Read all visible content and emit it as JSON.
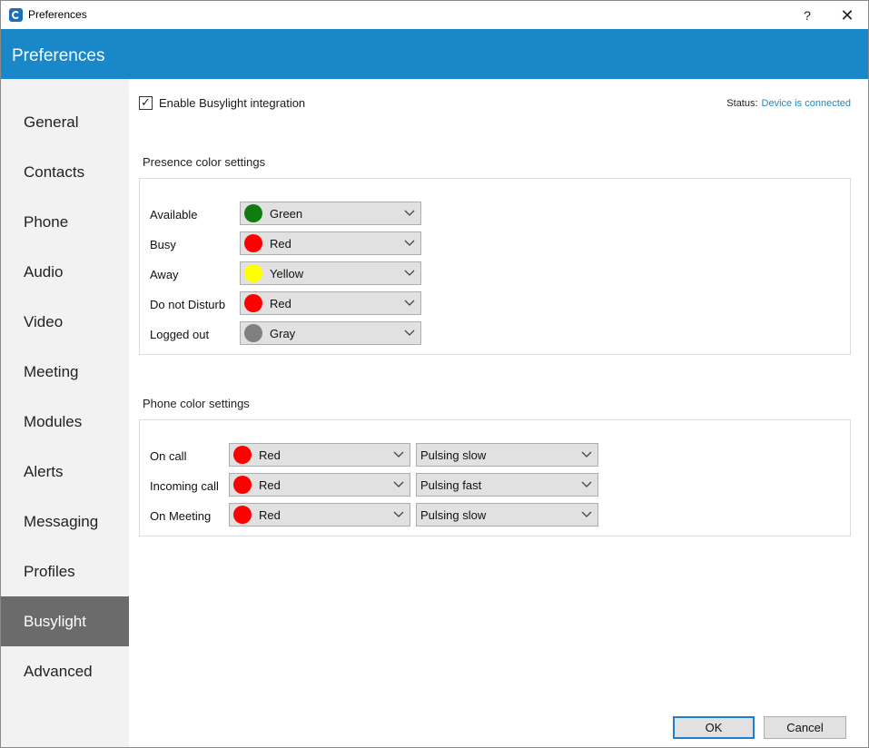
{
  "window": {
    "title": "Preferences",
    "help_label": "?",
    "close_label": "✕"
  },
  "header": {
    "title": "Preferences"
  },
  "sidebar": {
    "items": [
      {
        "label": "General"
      },
      {
        "label": "Contacts"
      },
      {
        "label": "Phone"
      },
      {
        "label": "Audio"
      },
      {
        "label": "Video"
      },
      {
        "label": "Meeting"
      },
      {
        "label": "Modules"
      },
      {
        "label": "Alerts"
      },
      {
        "label": "Messaging"
      },
      {
        "label": "Profiles"
      },
      {
        "label": "Busylight",
        "active": true
      },
      {
        "label": "Advanced"
      }
    ]
  },
  "busylight": {
    "enable_label": "Enable Busylight integration",
    "enabled": true,
    "check_glyph": "✓",
    "status_label": "Status:",
    "status_value": "Device is connected"
  },
  "presence": {
    "title": "Presence color settings",
    "rows": [
      {
        "label": "Available",
        "color_name": "Green",
        "color": "#107c10"
      },
      {
        "label": "Busy",
        "color_name": "Red",
        "color": "#ff0000"
      },
      {
        "label": "Away",
        "color_name": "Yellow",
        "color": "#ffff00"
      },
      {
        "label": "Do not Disturb",
        "color_name": "Red",
        "color": "#ff0000"
      },
      {
        "label": "Logged out",
        "color_name": "Gray",
        "color": "#808080"
      }
    ]
  },
  "phone": {
    "title": "Phone color settings",
    "rows": [
      {
        "label": "On call",
        "color_name": "Red",
        "color": "#ff0000",
        "pattern": "Pulsing slow"
      },
      {
        "label": "Incoming call",
        "color_name": "Red",
        "color": "#ff0000",
        "pattern": "Pulsing fast"
      },
      {
        "label": "On Meeting",
        "color_name": "Red",
        "color": "#ff0000",
        "pattern": "Pulsing slow"
      }
    ]
  },
  "footer": {
    "ok_label": "OK",
    "cancel_label": "Cancel"
  },
  "colors": {
    "header_blue": "#1a87c8",
    "sidebar_bg": "#f2f2f2",
    "sidebar_active": "#6b6b6b",
    "link_blue": "#1e88c8"
  }
}
